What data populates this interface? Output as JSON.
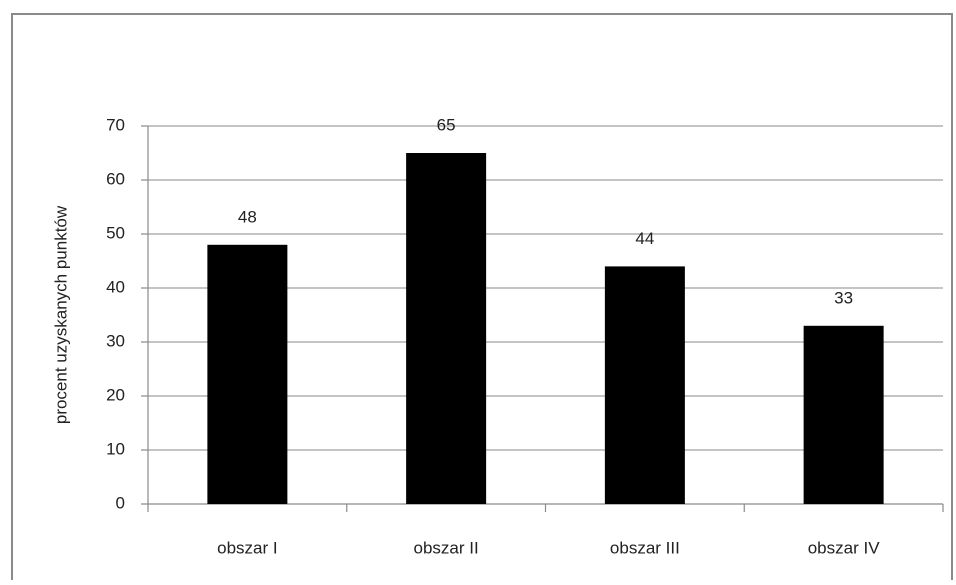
{
  "chart_data": {
    "type": "bar",
    "categories": [
      "obszar I",
      "obszar II",
      "obszar III",
      "obszar IV"
    ],
    "values": [
      48,
      65,
      44,
      33
    ],
    "color": "#000000",
    "ylabel": "procent uzyskanych punktów",
    "ylim": [
      0,
      70
    ],
    "yticks": [
      0,
      10,
      20,
      30,
      40,
      50,
      60,
      70
    ],
    "grid": true,
    "data_labels": true
  }
}
